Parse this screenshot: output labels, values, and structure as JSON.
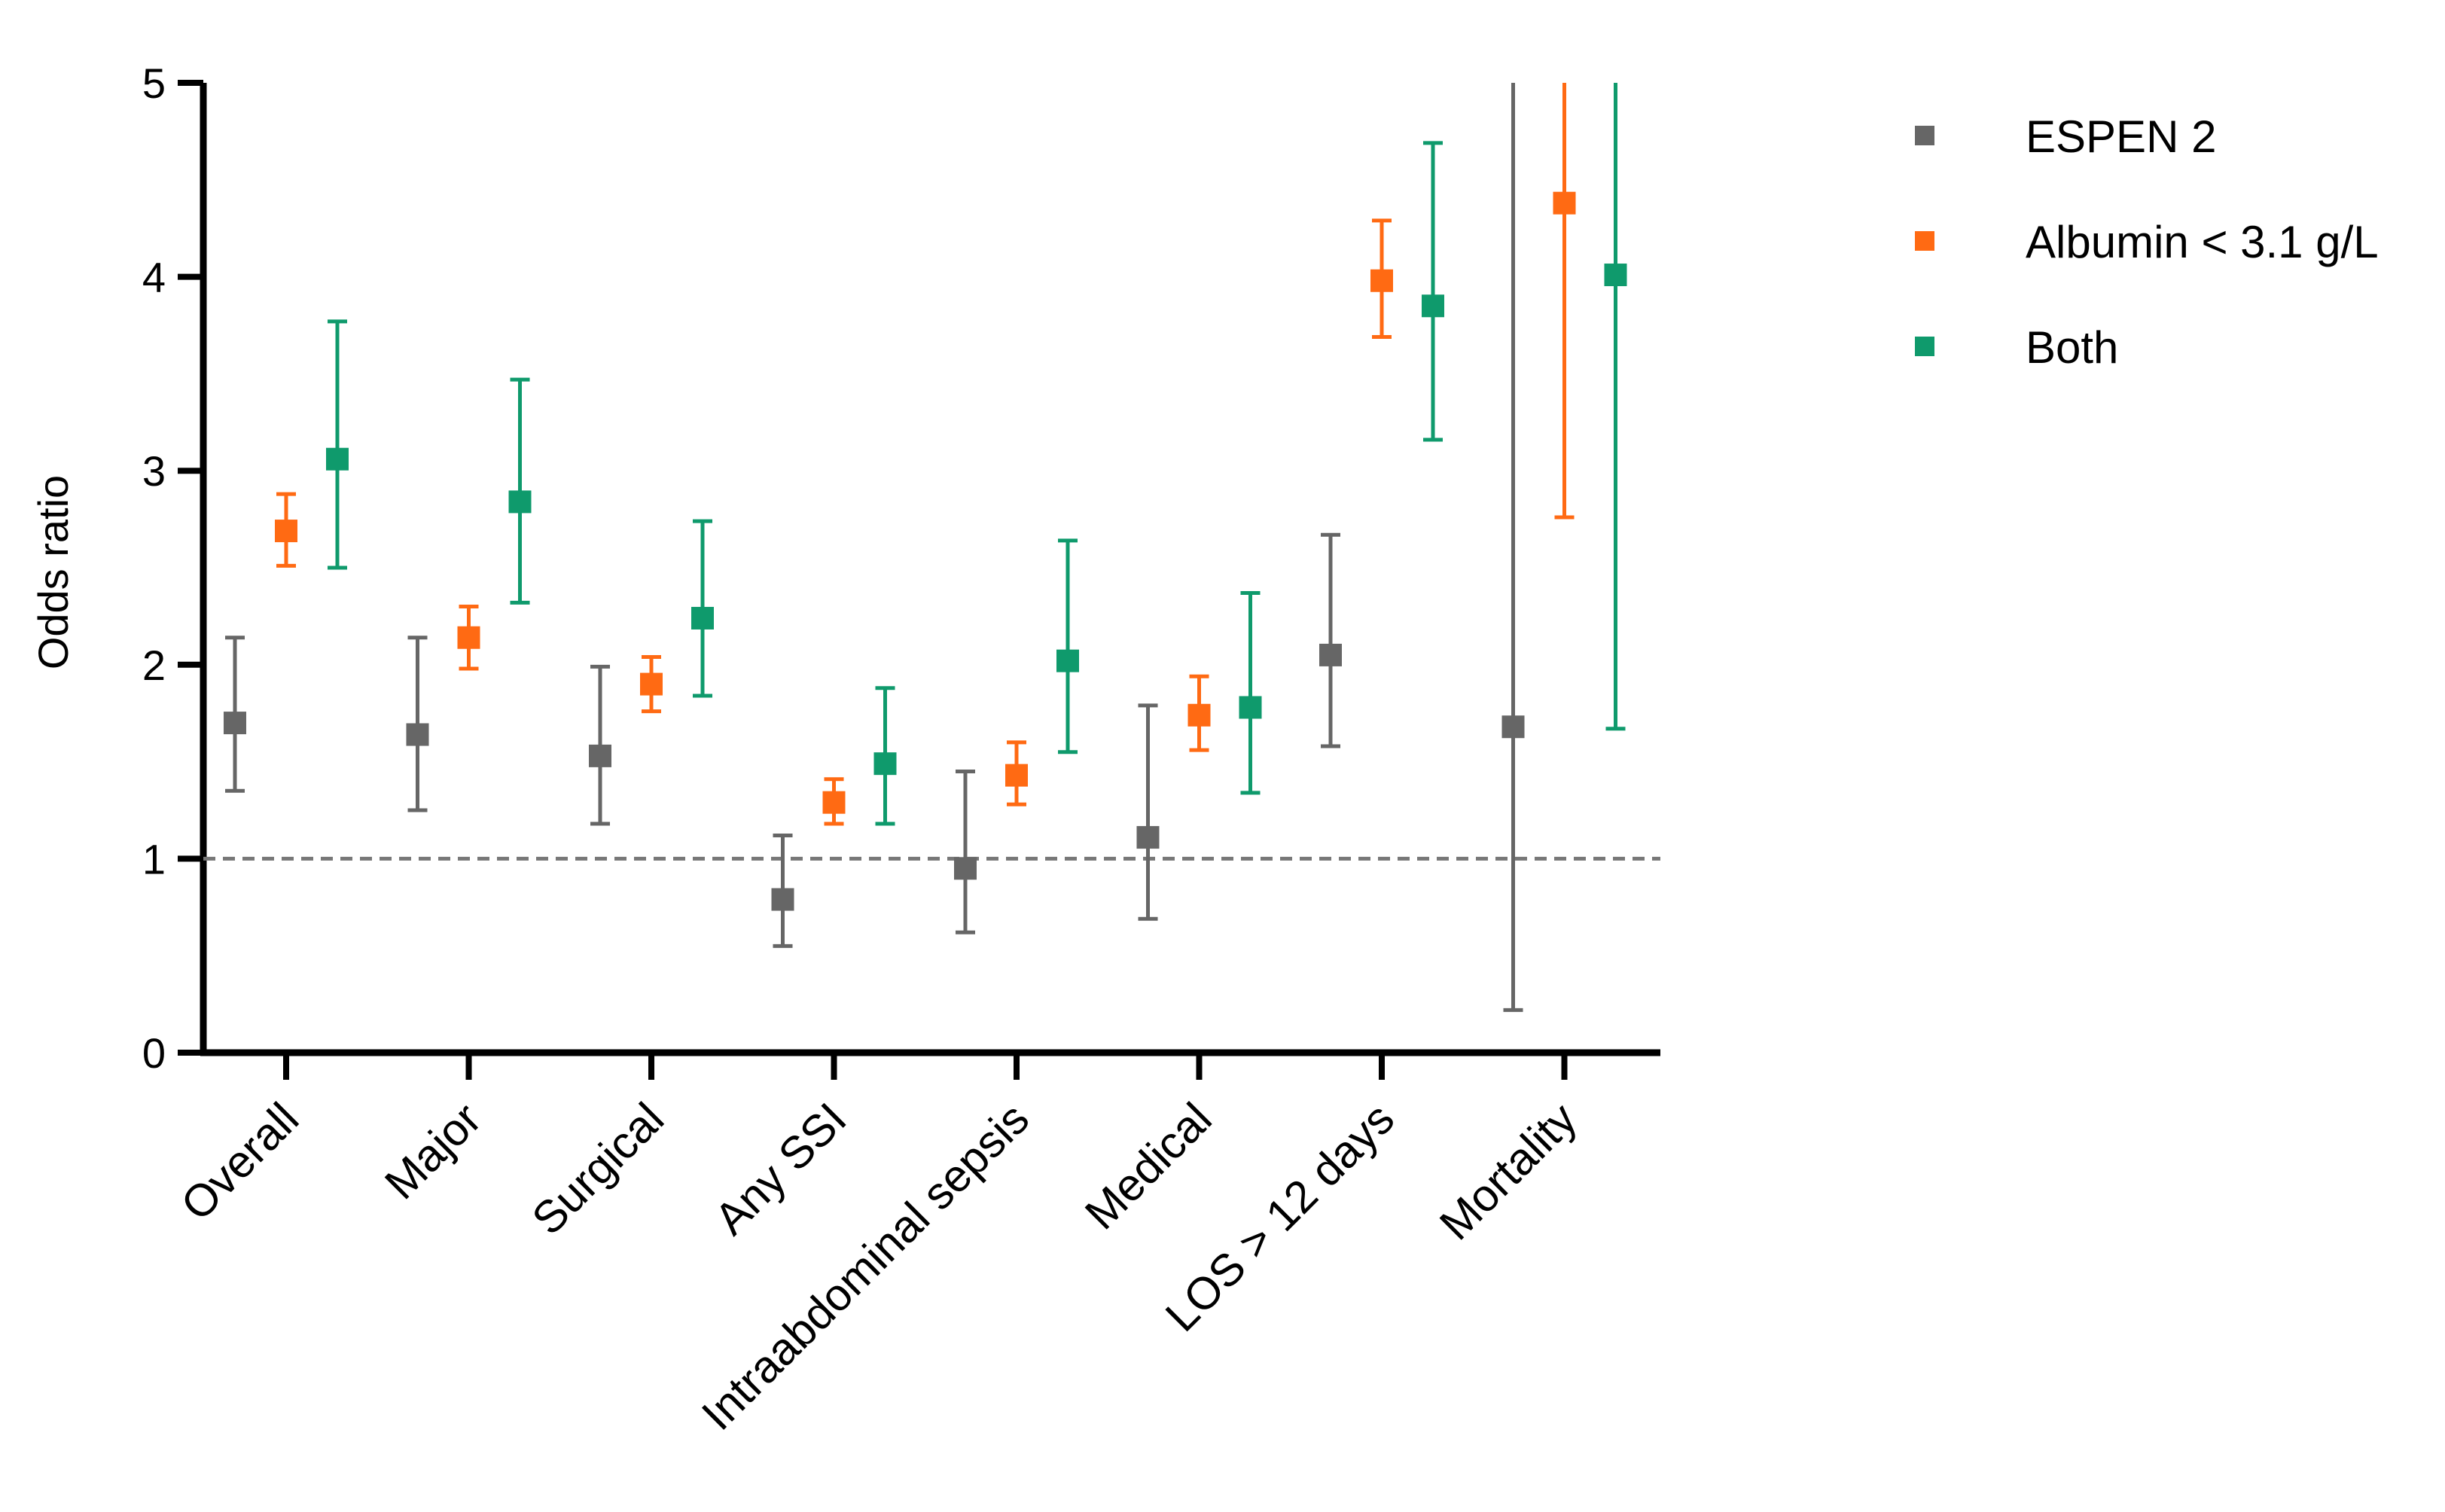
{
  "chart_data": {
    "type": "scatter",
    "subtype": "grouped error bars (point estimate with confidence interval)",
    "ylabel": "Odds ratio",
    "ylim": [
      0,
      5
    ],
    "yticks": [
      "0",
      "1",
      "2",
      "3",
      "4",
      "5"
    ],
    "reference_line": {
      "y": 1,
      "style": "dashed"
    },
    "categories": [
      "Overall",
      "Major",
      "Surgical",
      "Any SSI",
      "Intraabdominal sepsis",
      "Medical",
      "LOS > 12 days",
      "Mortality"
    ],
    "series": [
      {
        "name": "ESPEN 2",
        "color": "#666666",
        "values": [
          1.7,
          1.64,
          1.53,
          0.79,
          0.95,
          1.11,
          2.05,
          1.68
        ],
        "lower": [
          1.35,
          1.25,
          1.18,
          0.55,
          0.62,
          0.69,
          1.58,
          0.22
        ],
        "upper": [
          2.14,
          2.14,
          1.99,
          1.12,
          1.45,
          1.79,
          2.67,
          5.0
        ]
      },
      {
        "name": "Albumin < 3.1 g/L",
        "color": "#ff6a13",
        "values": [
          2.69,
          2.14,
          1.9,
          1.29,
          1.43,
          1.74,
          3.98,
          4.38
        ],
        "lower": [
          2.51,
          1.98,
          1.76,
          1.18,
          1.28,
          1.56,
          3.69,
          2.76
        ],
        "upper": [
          2.88,
          2.3,
          2.04,
          1.41,
          1.6,
          1.94,
          4.29,
          5.0
        ]
      },
      {
        "name": "Both",
        "color": "#0f9a6c",
        "values": [
          3.06,
          2.84,
          2.24,
          1.49,
          2.02,
          1.78,
          3.85,
          4.01
        ],
        "lower": [
          2.5,
          2.32,
          1.84,
          1.18,
          1.55,
          1.34,
          3.16,
          1.67
        ],
        "upper": [
          3.77,
          3.47,
          2.74,
          1.88,
          2.64,
          2.37,
          4.69,
          5.0
        ]
      }
    ],
    "legend_position": "top-right",
    "grid": false
  }
}
